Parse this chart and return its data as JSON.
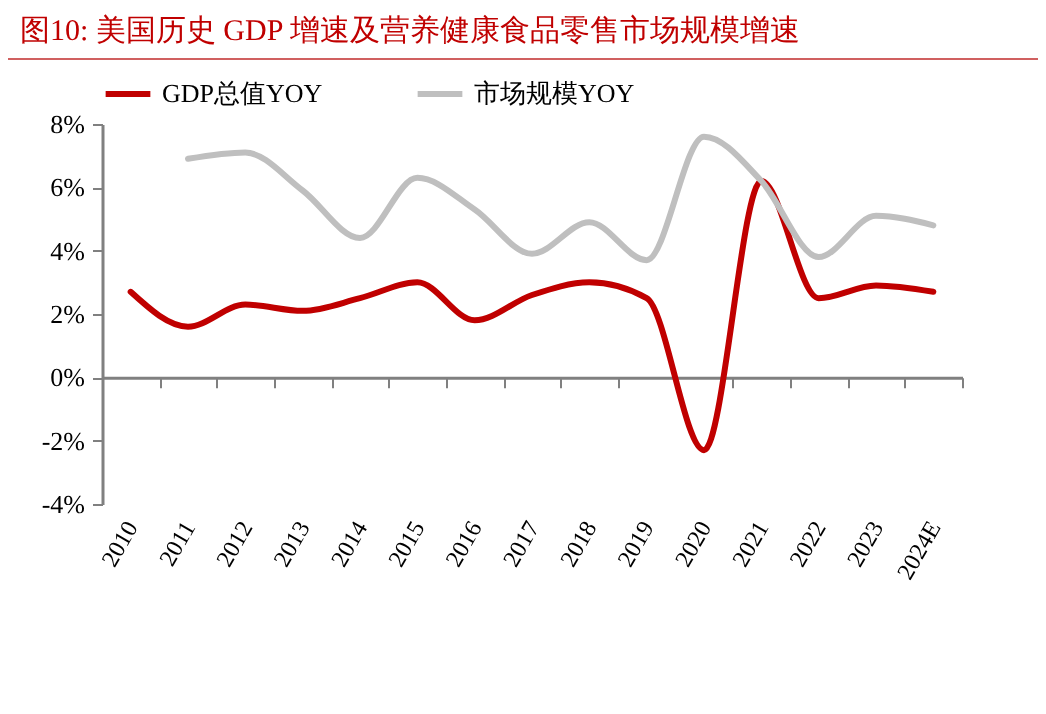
{
  "chart_data": {
    "type": "line",
    "title": "图10:   美国历史 GDP 增速及营养健康食品零售市场规模增速",
    "categories": [
      "2010",
      "2011",
      "2012",
      "2013",
      "2014",
      "2015",
      "2016",
      "2017",
      "2018",
      "2019",
      "2020",
      "2021",
      "2022",
      "2023",
      "2024E"
    ],
    "series": [
      {
        "name": "GDP总值YOY",
        "color": "#c00000",
        "values": [
          2.7,
          1.6,
          2.3,
          2.1,
          2.5,
          3.0,
          1.8,
          2.6,
          3.0,
          2.5,
          -2.3,
          6.2,
          2.5,
          2.9,
          2.7
        ]
      },
      {
        "name": "市场规模YOY",
        "color": "#bfbfbf",
        "values": [
          null,
          6.9,
          7.1,
          5.9,
          4.4,
          6.3,
          5.3,
          3.9,
          4.9,
          3.7,
          7.6,
          6.2,
          3.8,
          5.1,
          4.8
        ]
      }
    ],
    "ylim": [
      -4,
      8
    ],
    "yticks": [
      {
        "value": -4,
        "label": "-4%"
      },
      {
        "value": -2,
        "label": "-2%"
      },
      {
        "value": 0,
        "label": "0%"
      },
      {
        "value": 2,
        "label": "2%"
      },
      {
        "value": 4,
        "label": "4%"
      },
      {
        "value": 6,
        "label": "6%"
      },
      {
        "value": 8,
        "label": "8%"
      }
    ],
    "legend": "top",
    "marker": "none",
    "line_style": "solid"
  }
}
